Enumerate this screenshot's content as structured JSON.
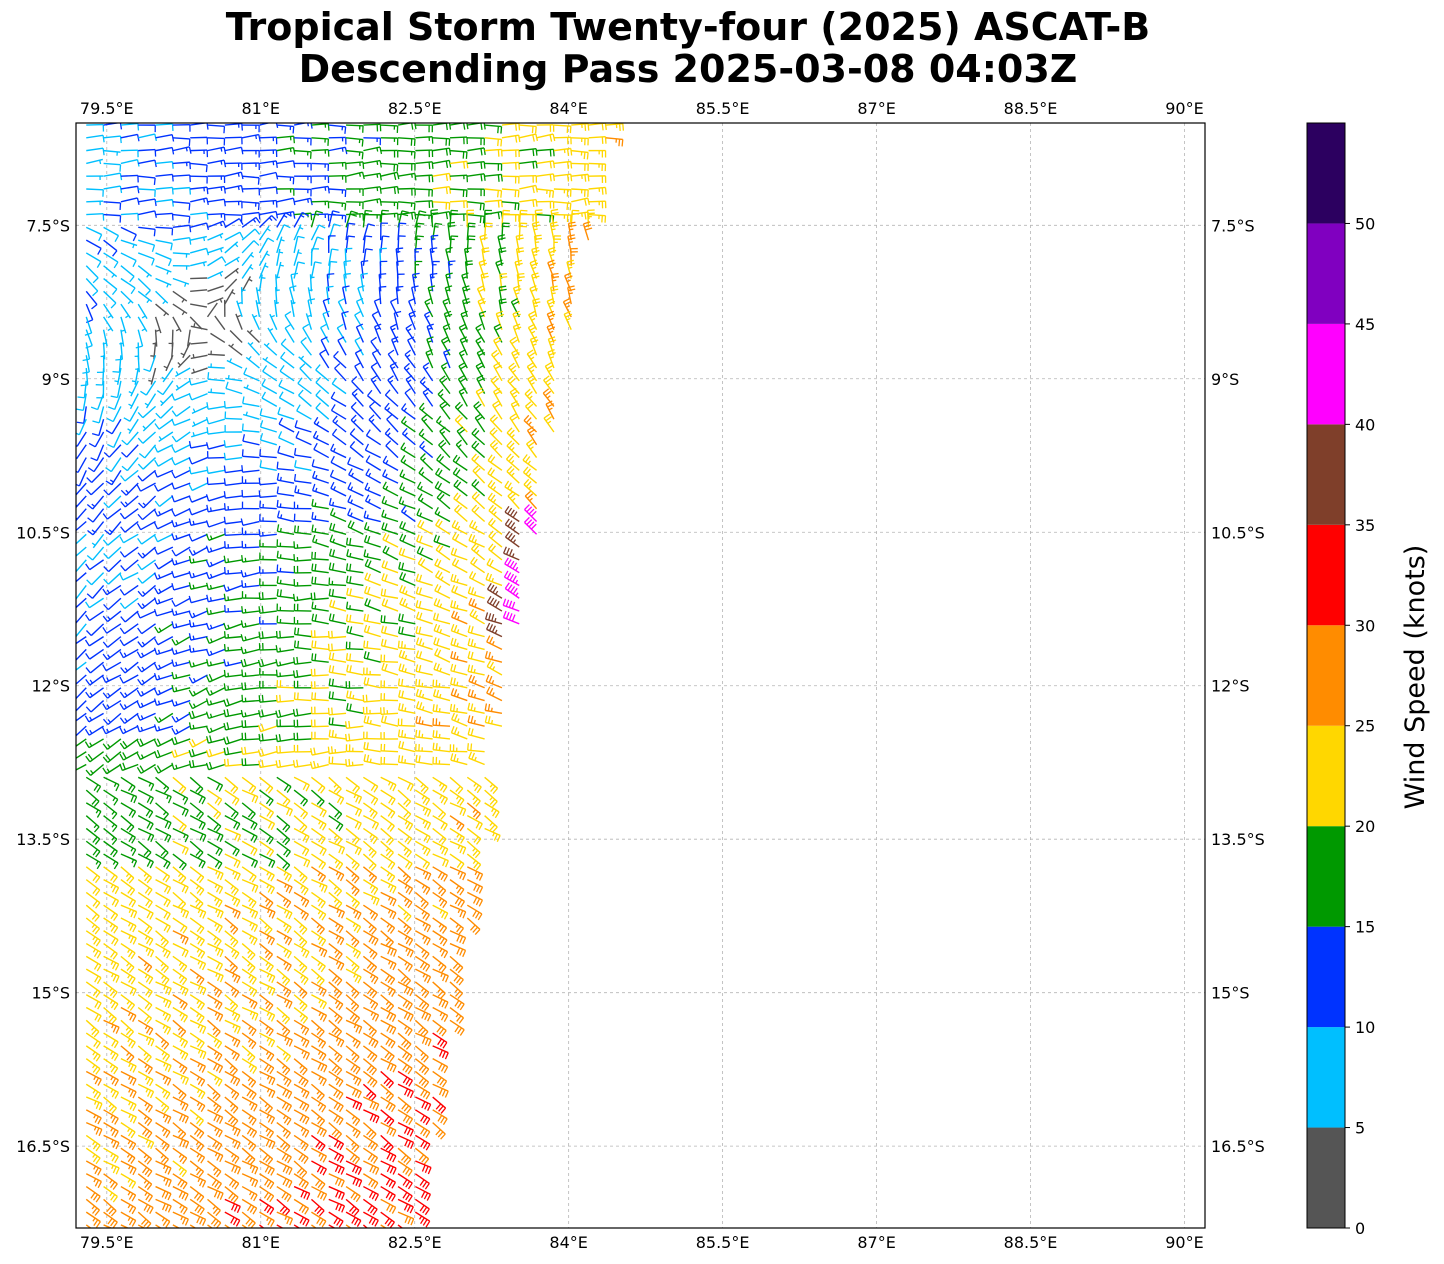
{
  "chart_data": {
    "type": "scatter",
    "title_line1": "Tropical Storm Twenty-four (2025) ASCAT-B",
    "title_line2": "Descending Pass 2025-03-08 04:03Z",
    "xlabel": "",
    "ylabel": "",
    "map": {
      "lon_range": [
        79.2,
        90.2
      ],
      "lat_range": [
        -17.3,
        -6.5
      ],
      "lon_ticks": [
        79.5,
        81,
        82.5,
        84,
        85.5,
        87,
        88.5,
        90
      ],
      "lon_tick_labels": [
        "79.5°E",
        "81°E",
        "82.5°E",
        "84°E",
        "85.5°E",
        "87°E",
        "88.5°E",
        "90°E"
      ],
      "lat_ticks": [
        -7.5,
        -9,
        -10.5,
        -12,
        -13.5,
        -15,
        -16.5
      ],
      "lat_tick_labels": [
        "7.5°S",
        "9°S",
        "10.5°S",
        "12°S",
        "13.5°S",
        "15°S",
        "16.5°S"
      ],
      "grid": true,
      "grid_style": "dashed light gray"
    },
    "swath": {
      "east_edge_lon_north": 84.4,
      "east_edge_lat_north": -6.5,
      "east_edge_lon_south": 82.5,
      "east_edge_lat_south": -17.3,
      "spacing_deg": 0.125
    },
    "wind_regions": [
      {
        "region": "north (6.5°S–8°S)",
        "direction": "easterly to southeasterly",
        "speed_kt": "5-20"
      },
      {
        "region": "center near 8.4°S 80.4°E",
        "direction": "light and variable",
        "speed_kt": "0-5"
      },
      {
        "region": "eastern edge 10.5°S–11.5°S",
        "direction": "northerly",
        "speed_kt": "25-45"
      },
      {
        "region": "south (13°S–17°S)",
        "direction": "southeasterly",
        "speed_kt": "20-35"
      }
    ],
    "colorbar": {
      "label": "Wind Speed (knots)",
      "bounds": [
        0,
        5,
        10,
        15,
        20,
        25,
        30,
        35,
        40,
        45,
        50,
        55
      ],
      "tick_values": [
        0,
        5,
        10,
        15,
        20,
        25,
        30,
        35,
        40,
        45,
        50
      ],
      "tick_labels": [
        "0",
        "5",
        "10",
        "15",
        "20",
        "25",
        "30",
        "35",
        "40",
        "45",
        "50"
      ],
      "colors": [
        "#555555",
        "#00bfff",
        "#0033ff",
        "#009900",
        "#ffd700",
        "#ff8c00",
        "#ff0000",
        "#7f3f2a",
        "#ff00ff",
        "#8000c0",
        "#2c0060"
      ]
    }
  }
}
